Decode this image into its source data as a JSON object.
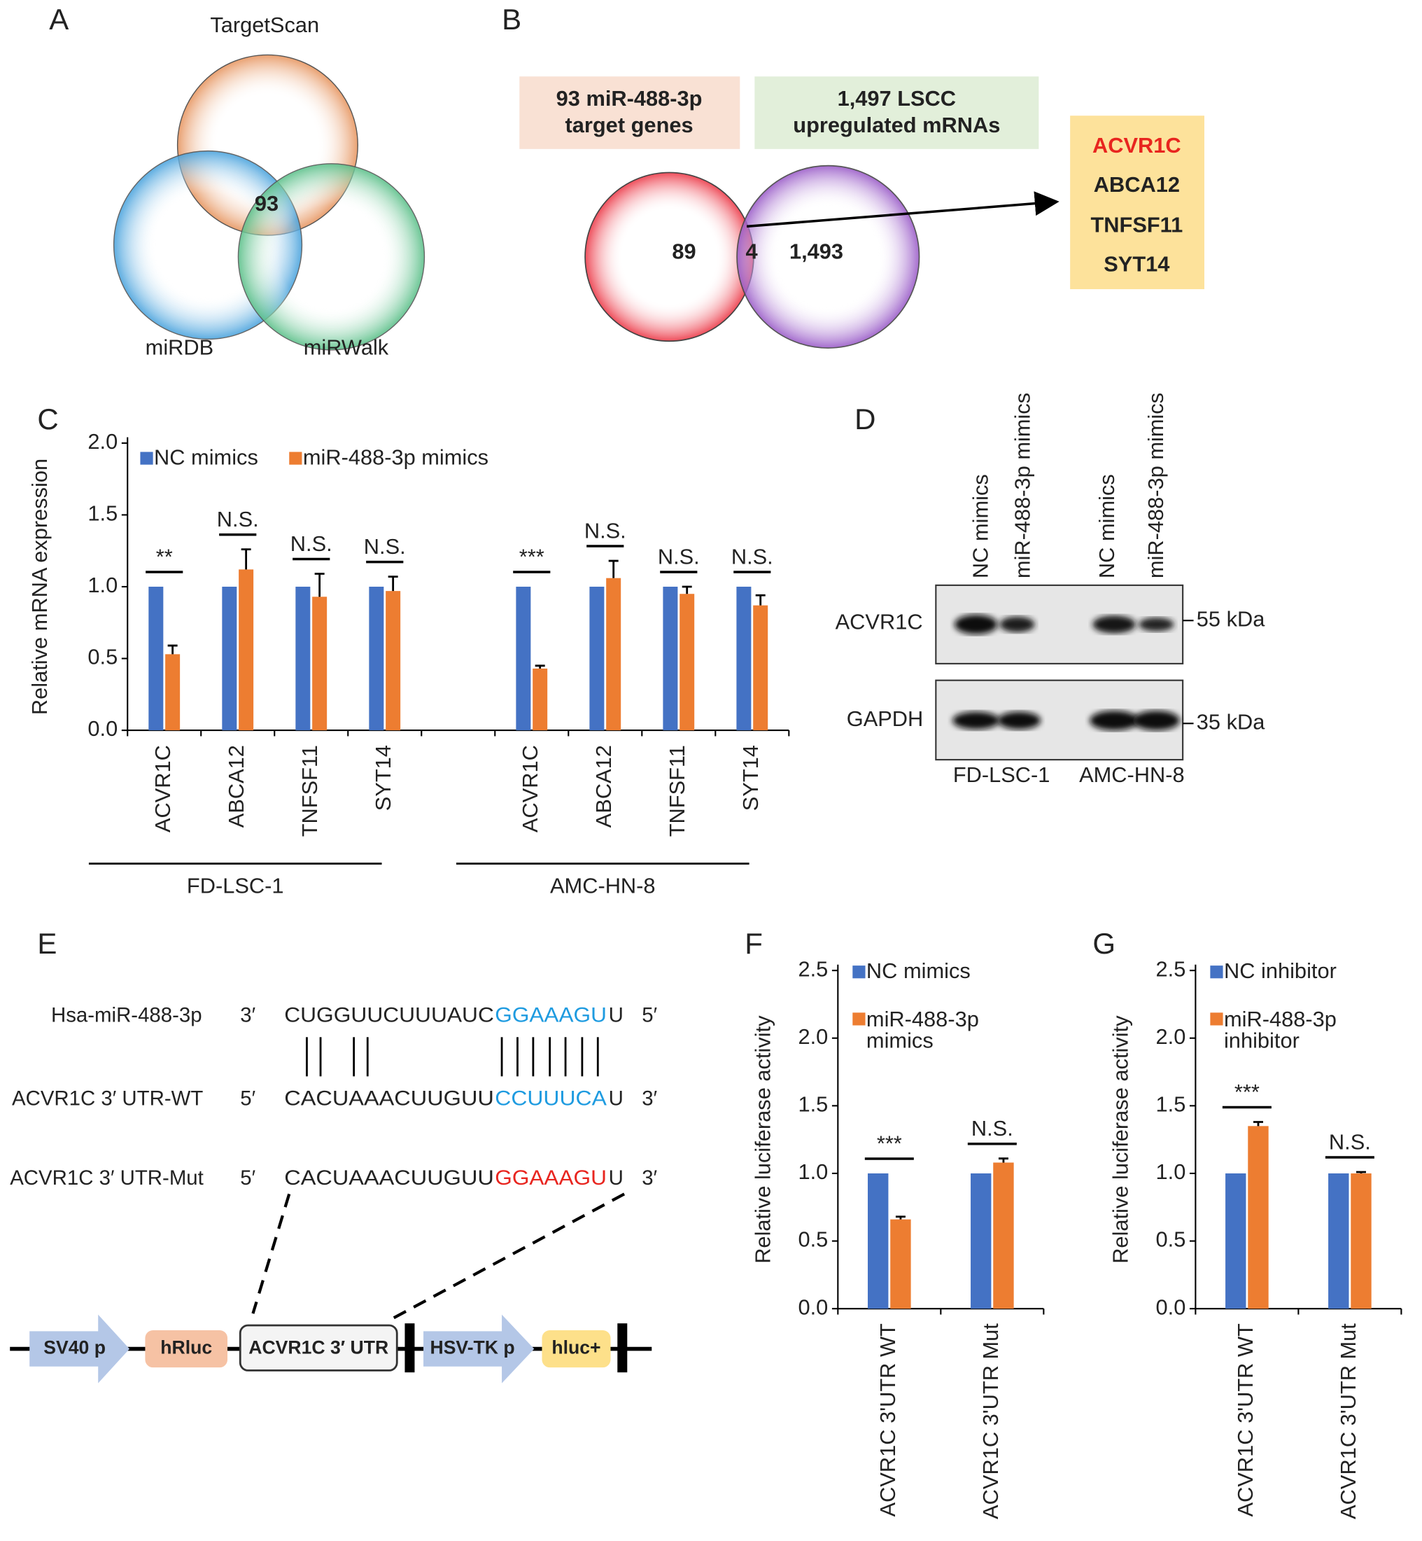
{
  "panels": {
    "A": {
      "label": "A",
      "sets": [
        "TargetScan",
        "miRDB",
        "miRWalk"
      ],
      "intersection": "93"
    },
    "B": {
      "label": "B",
      "box1": [
        "93 miR-488-3p",
        "target genes"
      ],
      "box2": [
        "1,497 LSCC",
        "upregulated mRNAs"
      ],
      "regions": [
        "89",
        "4",
        "1,493"
      ],
      "genes": [
        "ACVR1C",
        "ABCA12",
        "TNFSF11",
        "SYT14"
      ]
    },
    "C": {
      "label": "C"
    },
    "D": {
      "label": "D",
      "lanes": [
        "NC mimics",
        "miR-488-3p mimics",
        "NC mimics",
        "miR-488-3p mimics"
      ],
      "rows": [
        "ACVR1C",
        "GAPDH"
      ],
      "sizes": [
        "55 kDa",
        "35 kDa"
      ],
      "cell_lines": [
        "FD-LSC-1",
        "AMC-HN-8"
      ]
    },
    "E": {
      "label": "E",
      "rows": [
        {
          "name": "Hsa-miR-488-3p",
          "start": "3′",
          "parts": [
            "CUGGUUCUUUAUC",
            "GGAAAGU",
            "U"
          ],
          "end": "5′"
        },
        {
          "name": "ACVR1C 3′ UTR-WT",
          "start": "5′",
          "parts": [
            "CACUAAACUUGUU",
            "CCUUUCA",
            "U"
          ],
          "end": "3′"
        },
        {
          "name": "ACVR1C 3′ UTR-Mut",
          "start": "5′",
          "parts": [
            "CACUAAACUUGUU",
            "GGAAAGU",
            "U"
          ],
          "end": "3′"
        }
      ],
      "construct": [
        "SV40 p",
        "hRluc",
        "ACVR1C 3′ UTR",
        "HSV-TK p",
        "hluc+"
      ]
    },
    "F": {
      "label": "F"
    },
    "G": {
      "label": "G"
    }
  },
  "chart_data": [
    {
      "type": "bar",
      "y_label": "Relative mRNA expression",
      "categories": [
        "ACVR1C",
        "ABCA12",
        "TNFSF11",
        "SYT14",
        "ACVR1C",
        "ABCA12",
        "TNFSF11",
        "SYT14"
      ],
      "groups": [
        "FD-LSC-1",
        "AMC-HN-8"
      ],
      "series": [
        {
          "name": "NC mimics",
          "color": "#4472c4",
          "values": [
            1,
            1,
            1,
            1,
            1,
            1,
            1,
            1
          ]
        },
        {
          "name": "miR-488-3p mimics",
          "color": "#ed7d31",
          "values": [
            0.53,
            1.12,
            0.93,
            0.97,
            0.43,
            1.06,
            0.95,
            0.87
          ],
          "errors": [
            0.06,
            0.14,
            0.16,
            0.1,
            0.02,
            0.12,
            0.05,
            0.07
          ]
        }
      ],
      "annotations": [
        "**",
        "N.S.",
        "N.S.",
        "N.S.",
        "***",
        "N.S.",
        "N.S.",
        "N.S."
      ],
      "ylim": [
        0,
        2
      ],
      "yticks": [
        {
          "value": 0,
          "label": "0.0"
        },
        {
          "value": 0.5,
          "label": "0.5"
        },
        {
          "value": 1,
          "label": "1.0"
        },
        {
          "value": 1.5,
          "label": "1.5"
        },
        {
          "value": 2,
          "label": "2.0"
        }
      ],
      "legend": "top-left"
    },
    {
      "type": "bar",
      "y_label": "Relative luciferase activity",
      "categories": [
        "ACVR1C 3'UTR WT",
        "ACVR1C 3'UTR Mut"
      ],
      "series": [
        {
          "name": "NC mimics",
          "color": "#4472c4",
          "values": [
            1,
            1
          ]
        },
        {
          "name": "miR-488-3p mimics",
          "color": "#ed7d31",
          "values": [
            0.66,
            1.08
          ],
          "errors": [
            0.02,
            0.03
          ]
        }
      ],
      "annotations": [
        "***",
        "N.S."
      ],
      "ylim": [
        0,
        2.5
      ],
      "yticks": [
        {
          "value": 0,
          "label": "0.0"
        },
        {
          "value": 0.5,
          "label": "0.5"
        },
        {
          "value": 1,
          "label": "1.0"
        },
        {
          "value": 1.5,
          "label": "1.5"
        },
        {
          "value": 2,
          "label": "2.0"
        },
        {
          "value": 2.5,
          "label": "2.5"
        }
      ],
      "legend": "top-left"
    },
    {
      "type": "bar",
      "y_label": "Relative luciferase activity",
      "categories": [
        "ACVR1C 3'UTR WT",
        "ACVR1C 3'UTR Mut"
      ],
      "series": [
        {
          "name": "NC inhibitor",
          "color": "#4472c4",
          "values": [
            1,
            1
          ]
        },
        {
          "name": "miR-488-3p inhibitor",
          "color": "#ed7d31",
          "values": [
            1.35,
            1.0
          ],
          "errors": [
            0.03,
            0.01
          ]
        }
      ],
      "annotations": [
        "***",
        "N.S."
      ],
      "ylim": [
        0,
        2.5
      ],
      "yticks": [
        {
          "value": 0,
          "label": "0.0"
        },
        {
          "value": 0.5,
          "label": "0.5"
        },
        {
          "value": 1,
          "label": "1.0"
        },
        {
          "value": 1.5,
          "label": "1.5"
        },
        {
          "value": 2,
          "label": "2.0"
        },
        {
          "value": 2.5,
          "label": "2.5"
        }
      ],
      "legend": "top-left"
    }
  ]
}
